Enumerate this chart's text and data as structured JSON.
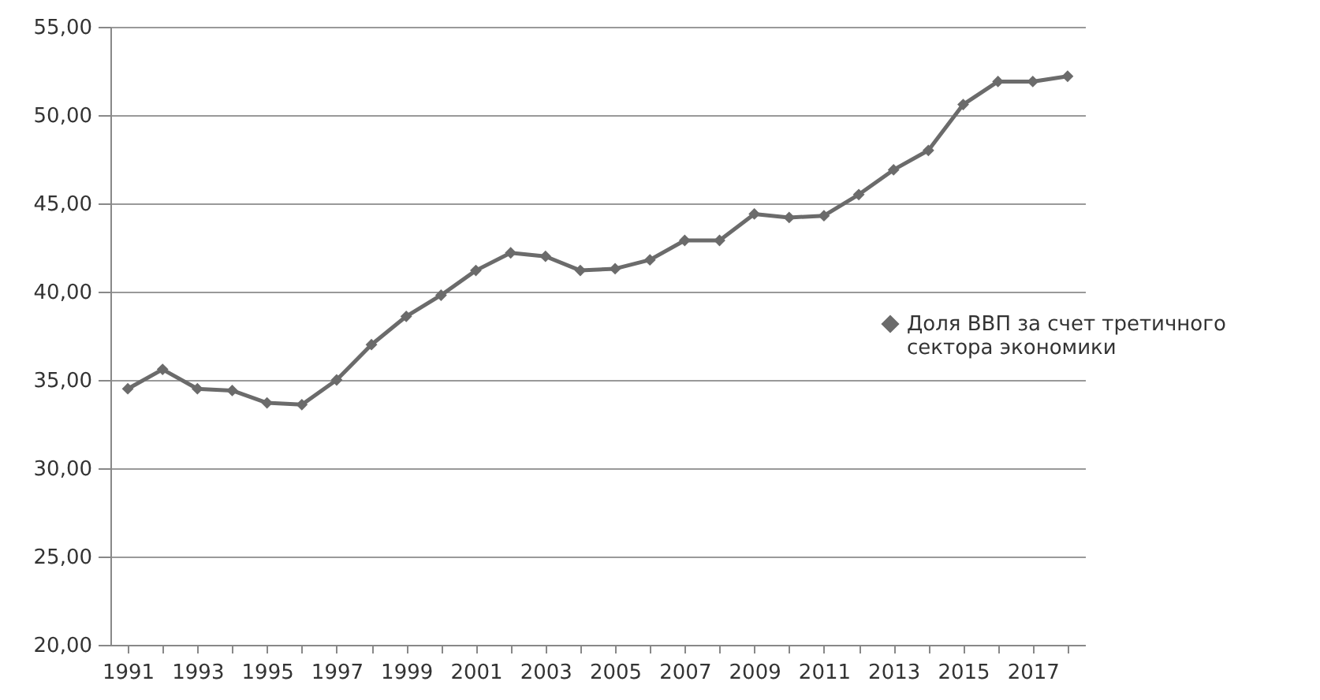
{
  "chart_data": {
    "type": "line",
    "categories": [
      "1991",
      null,
      "1993",
      null,
      "1995",
      null,
      "1997",
      null,
      "1999",
      null,
      "2001",
      null,
      "2003",
      null,
      "2005",
      null,
      "2007",
      null,
      "2009",
      null,
      "2011",
      null,
      "2013",
      null,
      "2015",
      null,
      "2017",
      null
    ],
    "series": [
      {
        "name": "Доля ВВП за счет третичного сектора экономики",
        "color": "#6b6b6b",
        "values": [
          34.5,
          35.6,
          34.5,
          34.4,
          33.7,
          33.6,
          35.0,
          37.0,
          38.6,
          39.8,
          41.2,
          42.2,
          42.0,
          41.2,
          41.3,
          41.8,
          42.9,
          42.9,
          44.4,
          44.2,
          44.3,
          45.5,
          46.9,
          48.0,
          50.6,
          51.9,
          51.9,
          52.2
        ]
      }
    ],
    "ylim": [
      20,
      55
    ],
    "yticks": [
      {
        "value": 20,
        "label": "20,00"
      },
      {
        "value": 25,
        "label": "25,00"
      },
      {
        "value": 30,
        "label": "30,00"
      },
      {
        "value": 35,
        "label": "35,00"
      },
      {
        "value": 40,
        "label": "40,00"
      },
      {
        "value": 45,
        "label": "45,00"
      },
      {
        "value": 50,
        "label": "50,00"
      },
      {
        "value": 55,
        "label": "55,00"
      }
    ],
    "grid": "y",
    "legend": "right",
    "marker": "diamond",
    "line_style": "solid"
  }
}
